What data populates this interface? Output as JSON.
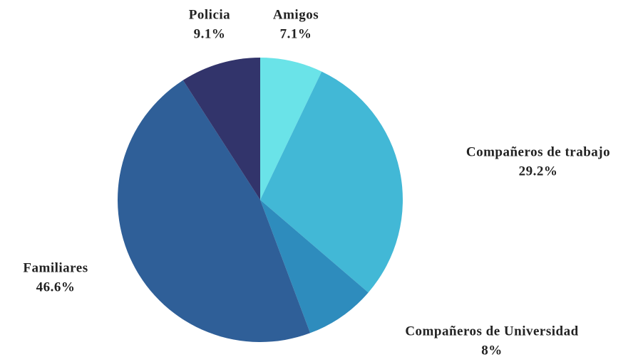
{
  "chart_data": {
    "type": "pie",
    "categories": [
      "Amigos",
      "Compañeros de trabajo",
      "Compañeros de Universidad",
      "Familiares",
      "Policia"
    ],
    "values": [
      7.1,
      29.2,
      8,
      46.6,
      9.1
    ],
    "value_labels": [
      "7.1%",
      "29.2%",
      "8%",
      "46.6%",
      "9.1%"
    ],
    "colors": [
      "#6ae3e8",
      "#42b8d6",
      "#2e8cbd",
      "#2f5f98",
      "#32346b"
    ]
  }
}
